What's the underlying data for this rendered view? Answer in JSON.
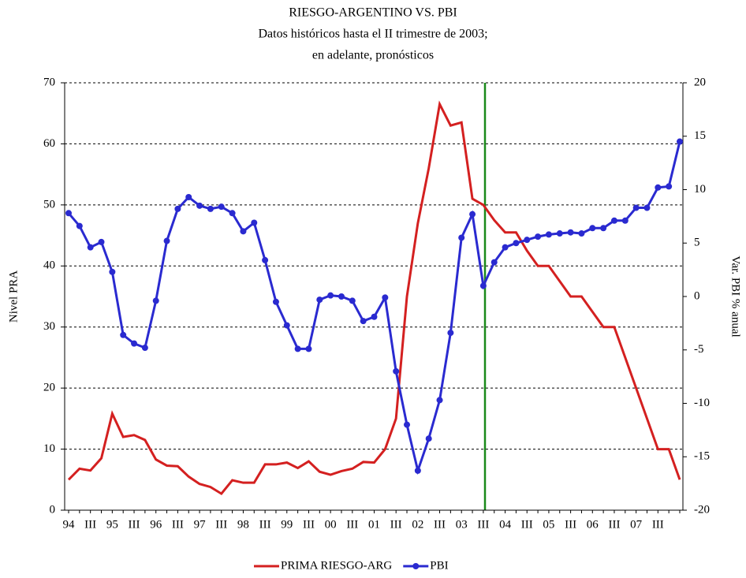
{
  "chart_data": {
    "type": "line",
    "title": "RIESGO-ARGENTINO VS. PBI",
    "subtitle": [
      "Datos históricos hasta el II trimestre de 2003;",
      "en adelante, pronósticos"
    ],
    "y_label": "Nivel PRA",
    "y2_label": "Var. PBI % anual",
    "categories": [
      "94",
      null,
      "III",
      null,
      "95",
      null,
      "III",
      null,
      "96",
      null,
      "III",
      null,
      "97",
      null,
      "III",
      null,
      "98",
      null,
      "III",
      null,
      "99",
      null,
      "III",
      null,
      "00",
      null,
      "III",
      null,
      "01",
      null,
      "III",
      null,
      "02",
      null,
      "III",
      null,
      "03",
      null,
      "III",
      null,
      "04",
      null,
      "III",
      null,
      "05",
      null,
      "III",
      null,
      "06",
      null,
      "III",
      null,
      "07",
      null,
      "III",
      null,
      null
    ],
    "ylim": [
      0,
      70
    ],
    "yticks": [
      0,
      10,
      20,
      30,
      40,
      50,
      60,
      70
    ],
    "y2lim": [
      -20,
      20
    ],
    "y2ticks": [
      -20,
      -15,
      -10,
      -5,
      0,
      5,
      10,
      15,
      20
    ],
    "grid": true,
    "legend": "bottom",
    "series": [
      {
        "name": "PRIMA RIESGO-ARG",
        "color": "#d42020",
        "marker": false,
        "values": [
          5,
          6.8,
          6.5,
          8.5,
          15.8,
          12,
          12.3,
          11.5,
          8.3,
          7.3,
          7.2,
          5.5,
          4.3,
          3.8,
          2.7,
          4.9,
          4.5,
          4.5,
          7.5,
          7.5,
          7.8,
          6.9,
          8,
          6.3,
          5.8,
          6.4,
          6.8,
          7.9,
          7.8,
          10,
          15,
          35,
          47,
          56,
          66.5,
          63,
          63.5,
          51,
          50,
          47.5,
          45.5,
          45.5,
          42.5,
          40,
          40,
          37.5,
          35,
          35,
          32.5,
          30,
          30,
          25,
          20,
          15,
          10,
          10,
          5
        ]
      },
      {
        "name": "PBI",
        "color": "#2a2ad0",
        "marker": true,
        "axis": "y2",
        "values": [
          7.8,
          6.6,
          4.6,
          5.1,
          2.3,
          -3.6,
          -4.4,
          -4.8,
          -0.4,
          5.2,
          8.2,
          9.3,
          8.5,
          8.2,
          8.4,
          7.8,
          6.1,
          6.9,
          3.4,
          -0.5,
          -2.7,
          -4.9,
          -4.9,
          -0.3,
          0.1,
          0,
          -0.4,
          -2.3,
          -1.9,
          -0.1,
          -7,
          -12,
          -16.3,
          -13.3,
          -9.7,
          -3.4,
          5.5,
          7.7,
          1.0,
          3.2,
          4.6,
          5.0,
          5.3,
          5.6,
          5.8,
          5.9,
          6.0,
          5.9,
          6.4,
          6.4,
          7.1,
          7.1,
          8.3,
          8.3,
          10.2,
          10.3,
          14.5
        ]
      }
    ]
  }
}
